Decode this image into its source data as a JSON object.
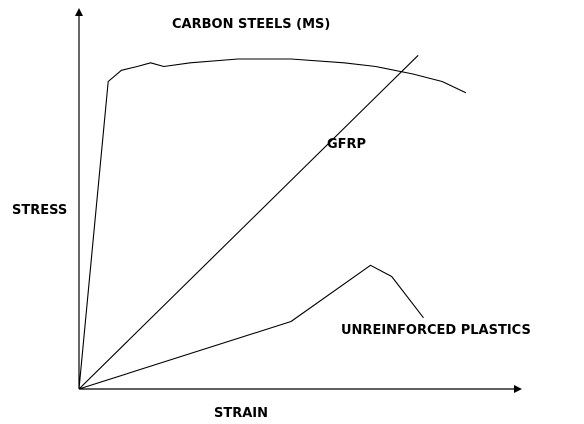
{
  "chart_data": {
    "type": "line",
    "title": "",
    "xlabel": "STRAIN",
    "ylabel": "STRESS",
    "x_ticks": [],
    "y_ticks": [],
    "grid": false,
    "legend": "none",
    "annotations": [
      "CARBON STEELS (MS)",
      "GFRP",
      "UNREINFORCED PLASTICS"
    ],
    "series": [
      {
        "name": "CARBON STEELS (MS)",
        "color": "#000000",
        "x": [
          0,
          5.5,
          8,
          11,
          13.5,
          16,
          21,
          30,
          40,
          50,
          56,
          63,
          68.5,
          73
        ],
        "y": [
          0,
          82,
          85,
          86,
          87,
          86,
          87,
          88,
          88,
          87,
          86,
          84,
          82,
          79
        ]
      },
      {
        "name": "GFRP",
        "color": "#000000",
        "x": [
          0,
          64
        ],
        "y": [
          0,
          89
        ]
      },
      {
        "name": "UNREINFORCED PLASTICS",
        "color": "#000000",
        "x": [
          0,
          40,
          55,
          59,
          65
        ],
        "y": [
          0,
          18,
          33,
          30,
          19
        ]
      }
    ]
  }
}
